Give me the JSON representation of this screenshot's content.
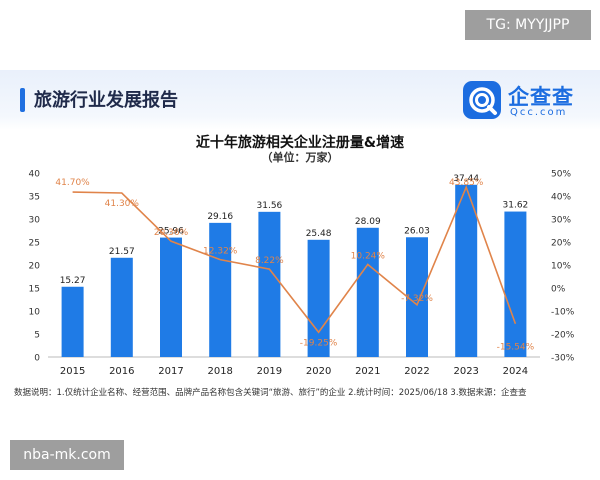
{
  "watermark_top": "TG: MYYJJPP",
  "watermark_bottom": "nba-mk.com",
  "header": {
    "title": "旅游行业发展报告"
  },
  "logo": {
    "cn": "企查查",
    "en": "Qcc.com",
    "icon": "qcc-logo-icon"
  },
  "colors": {
    "bar": "#1f7be6",
    "line": "#e0844a",
    "accent": "#1f6fe0"
  },
  "chart_data": {
    "type": "bar",
    "title": "近十年旅游相关企业注册量&增速",
    "subtitle": "（单位：万家）",
    "categories": [
      "2015",
      "2016",
      "2017",
      "2018",
      "2019",
      "2020",
      "2021",
      "2022",
      "2023",
      "2024"
    ],
    "series": [
      {
        "type": "bar",
        "values": [
          15.27,
          21.57,
          25.96,
          29.16,
          31.56,
          25.48,
          28.09,
          26.03,
          37.44,
          31.62
        ]
      },
      {
        "type": "line",
        "axis": "right",
        "values": [
          41.7,
          41.3,
          20.36,
          12.32,
          8.22,
          -19.25,
          10.24,
          -7.32,
          43.85,
          -15.54
        ],
        "labels": [
          "41.70%",
          "41.30%",
          "20.36%",
          "12.32%",
          "8.22%",
          "-19.25%",
          "10.24%",
          "-7.32%",
          "43.85%",
          "-15.54%"
        ]
      }
    ],
    "ylim_left": [
      0,
      40
    ],
    "yticks_left": [
      "0",
      "5",
      "10",
      "15",
      "20",
      "25",
      "30",
      "35",
      "40"
    ],
    "ylim_right": [
      -30,
      50
    ],
    "yticks_right": [
      "-30%",
      "-20%",
      "-10%",
      "0%",
      "10%",
      "20%",
      "30%",
      "40%",
      "50%"
    ],
    "grid": false,
    "legend": "none"
  },
  "footnote": "数据说明：1.仅统计企业名称、经营范围、品牌产品名称包含关键词“旅游、旅行”的企业   2.统计时间：2025/06/18   3.数据来源：企查查"
}
